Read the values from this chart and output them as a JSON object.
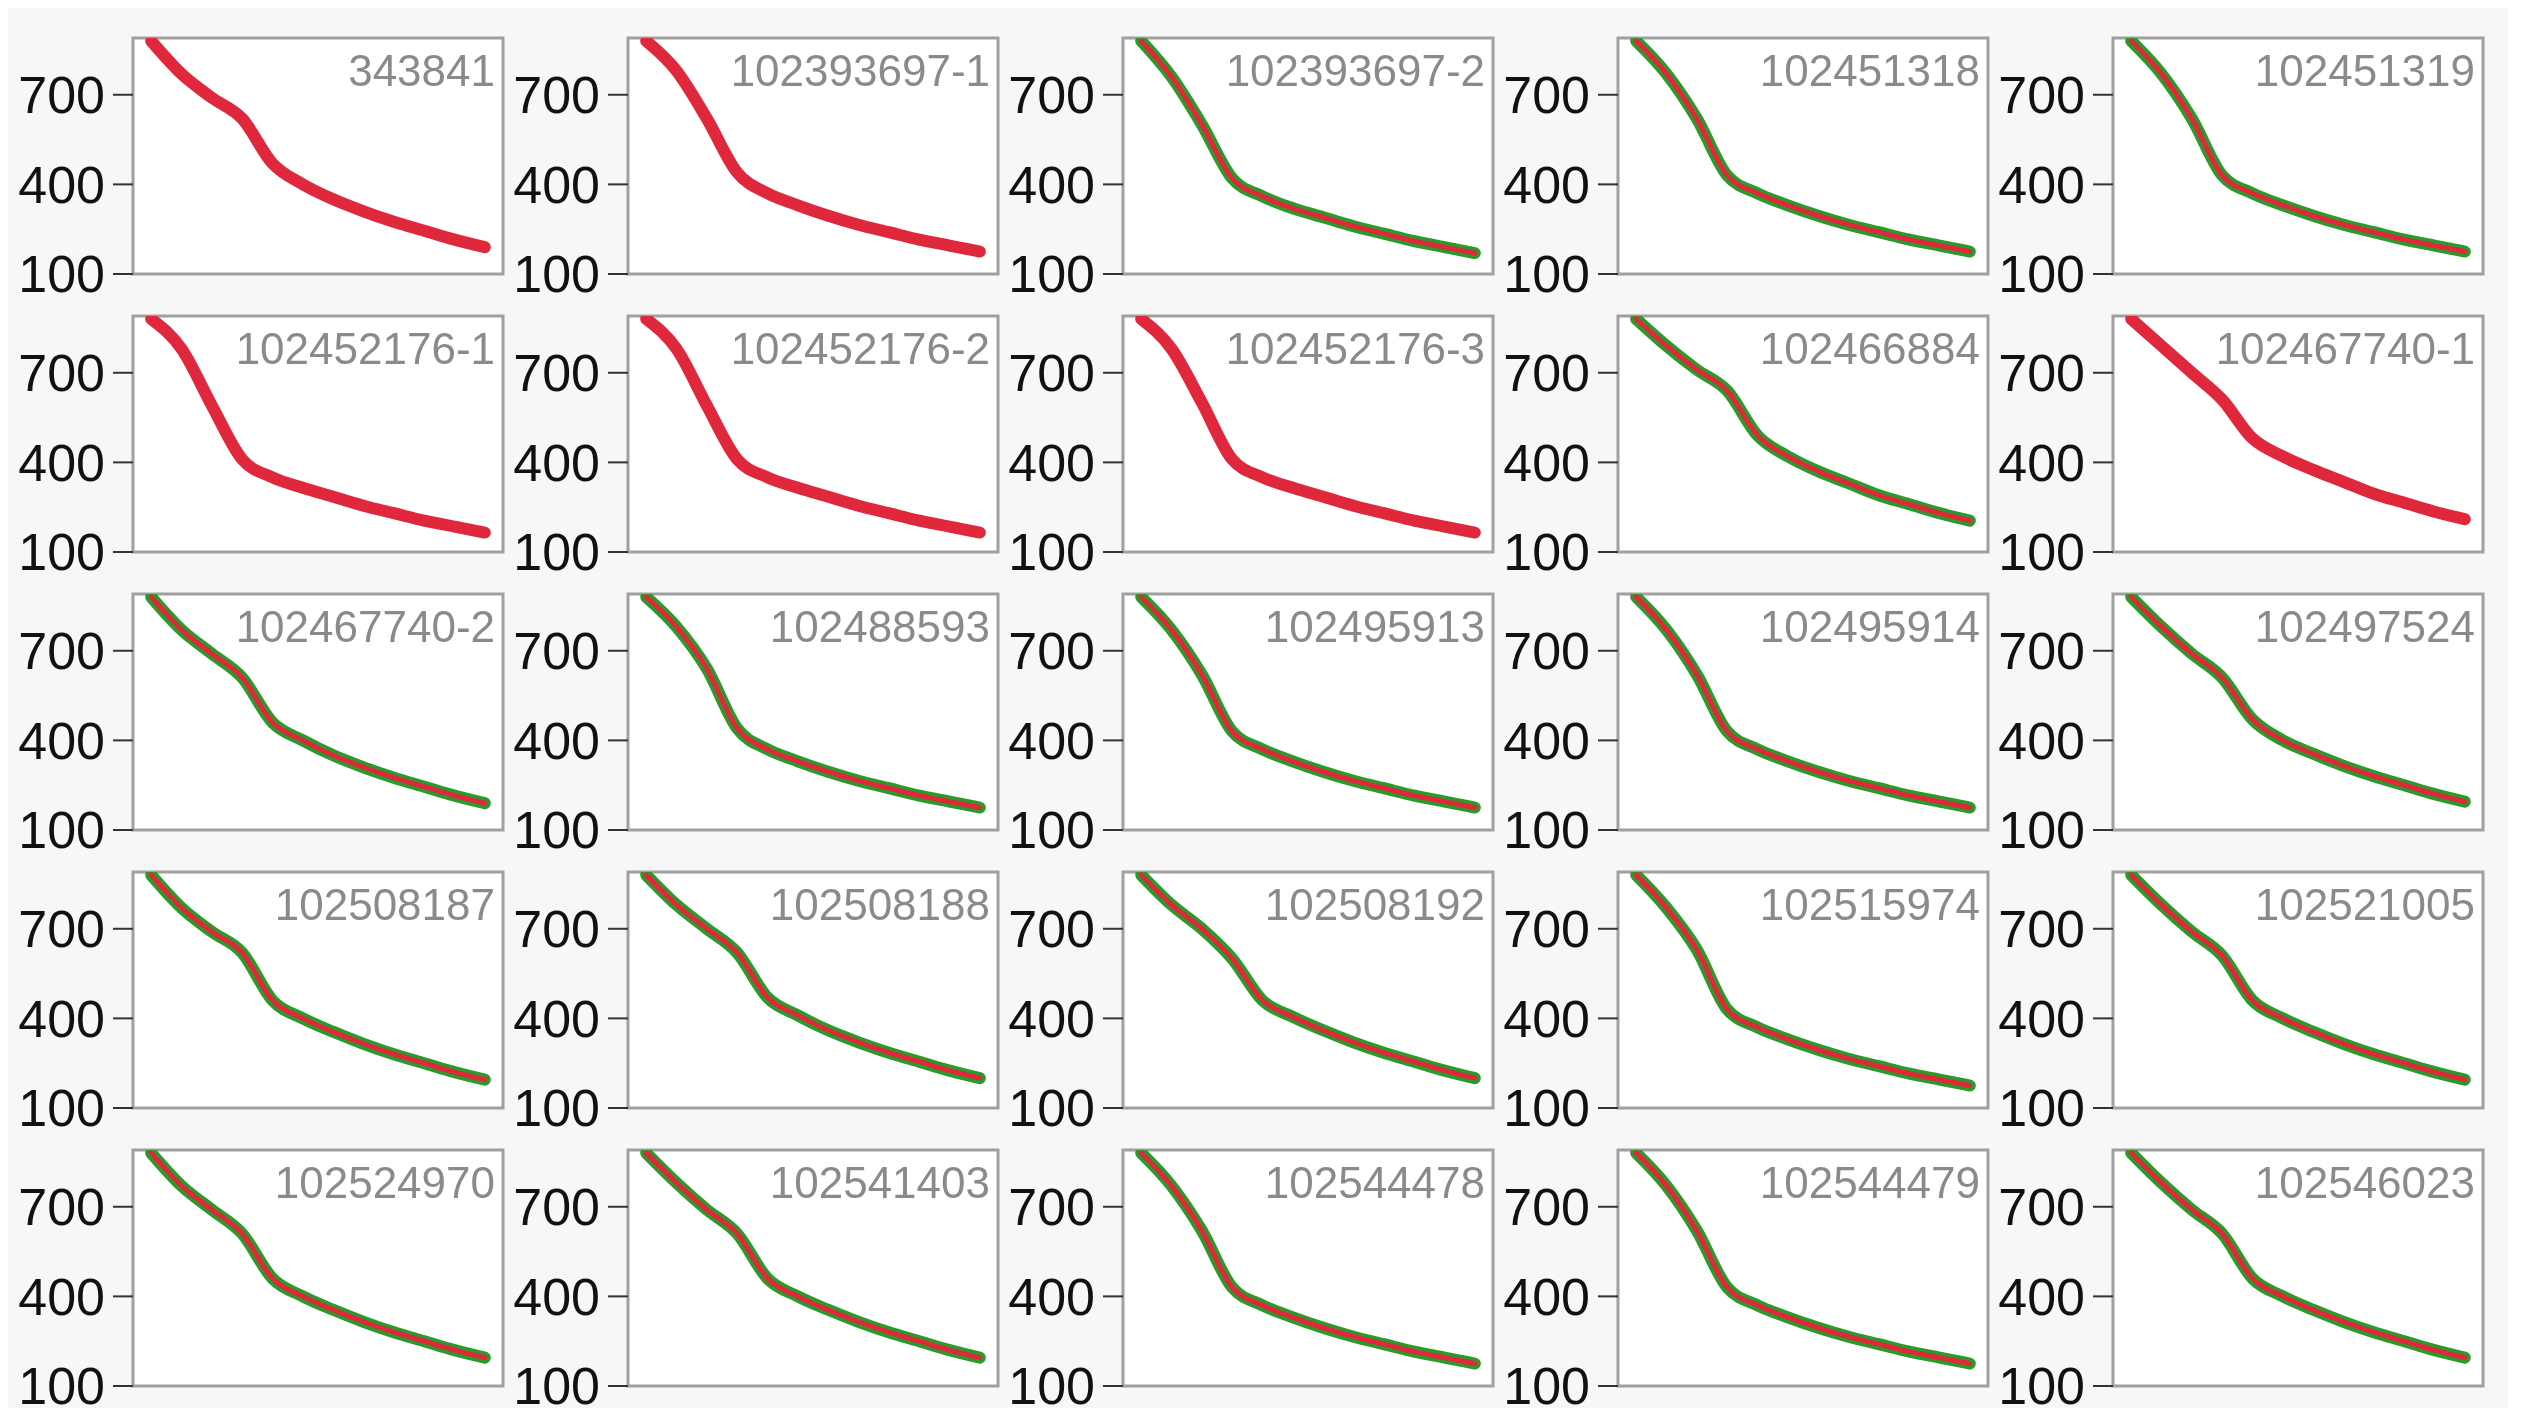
{
  "chart_data": [
    {
      "type": "line",
      "title": "343841",
      "categories": [
        null,
        null,
        null,
        null,
        null,
        null,
        null,
        null,
        null,
        null,
        null,
        null
      ],
      "ylim": [
        100,
        890
      ],
      "yticks": [
        100,
        400,
        700
      ],
      "series": [
        {
          "color": "#e0283c",
          "values": [
            880,
            770,
            690,
            620,
            470,
            400,
            350,
            310,
            275,
            245,
            215,
            190
          ]
        }
      ]
    },
    {
      "type": "line",
      "title": "102393697-1",
      "categories": [
        null,
        null,
        null,
        null,
        null,
        null,
        null,
        null,
        null,
        null,
        null,
        null
      ],
      "ylim": [
        100,
        890
      ],
      "yticks": [
        100,
        400,
        700
      ],
      "series": [
        {
          "color": "#e0283c",
          "values": [
            880,
            780,
            620,
            440,
            370,
            330,
            295,
            265,
            240,
            215,
            195,
            175
          ]
        }
      ]
    },
    {
      "type": "line",
      "title": "102393697-2",
      "categories": [
        null,
        null,
        null,
        null,
        null,
        null,
        null,
        null,
        null,
        null,
        null,
        null
      ],
      "ylim": [
        100,
        890
      ],
      "yticks": [
        100,
        400,
        700
      ],
      "series": [
        {
          "color": "#2a9a2a",
          "values": [
            880,
            760,
            600,
            420,
            360,
            320,
            290,
            260,
            235,
            210,
            190,
            170
          ]
        },
        {
          "color": "#e0283c",
          "values": [
            880,
            760,
            600,
            420,
            360,
            320,
            290,
            260,
            235,
            210,
            190,
            170
          ]
        }
      ]
    },
    {
      "type": "line",
      "title": "102451318",
      "categories": [
        null,
        null,
        null,
        null,
        null,
        null,
        null,
        null,
        null,
        null,
        null,
        null
      ],
      "ylim": [
        100,
        890
      ],
      "yticks": [
        100,
        400,
        700
      ],
      "series": [
        {
          "color": "#2a9a2a",
          "values": [
            880,
            770,
            620,
            430,
            370,
            330,
            295,
            265,
            240,
            215,
            195,
            175
          ]
        },
        {
          "color": "#e0283c",
          "values": [
            880,
            770,
            620,
            430,
            370,
            330,
            295,
            265,
            240,
            215,
            195,
            175
          ]
        }
      ]
    },
    {
      "type": "line",
      "title": "102451319",
      "categories": [
        null,
        null,
        null,
        null,
        null,
        null,
        null,
        null,
        null,
        null,
        null,
        null
      ],
      "ylim": [
        100,
        890
      ],
      "yticks": [
        100,
        400,
        700
      ],
      "series": [
        {
          "color": "#2a9a2a",
          "values": [
            880,
            770,
            620,
            430,
            370,
            330,
            295,
            265,
            240,
            215,
            195,
            175
          ]
        },
        {
          "color": "#e0283c",
          "values": [
            880,
            770,
            620,
            430,
            370,
            330,
            295,
            265,
            240,
            215,
            195,
            175
          ]
        }
      ]
    },
    {
      "type": "line",
      "title": "102452176-1",
      "categories": [
        null,
        null,
        null,
        null,
        null,
        null,
        null,
        null,
        null,
        null,
        null,
        null
      ],
      "ylim": [
        100,
        890
      ],
      "yticks": [
        100,
        400,
        700
      ],
      "series": [
        {
          "color": "#e0283c",
          "values": [
            880,
            780,
            590,
            410,
            350,
            315,
            285,
            255,
            230,
            205,
            185,
            165
          ]
        }
      ]
    },
    {
      "type": "line",
      "title": "102452176-2",
      "categories": [
        null,
        null,
        null,
        null,
        null,
        null,
        null,
        null,
        null,
        null,
        null,
        null
      ],
      "ylim": [
        100,
        890
      ],
      "yticks": [
        100,
        400,
        700
      ],
      "series": [
        {
          "color": "#e0283c",
          "values": [
            880,
            780,
            590,
            410,
            350,
            315,
            285,
            255,
            230,
            205,
            185,
            165
          ]
        }
      ]
    },
    {
      "type": "line",
      "title": "102452176-3",
      "categories": [
        null,
        null,
        null,
        null,
        null,
        null,
        null,
        null,
        null,
        null,
        null,
        null
      ],
      "ylim": [
        100,
        890
      ],
      "yticks": [
        100,
        400,
        700
      ],
      "series": [
        {
          "color": "#e0283c",
          "values": [
            880,
            780,
            600,
            410,
            350,
            315,
            285,
            255,
            230,
            205,
            185,
            165
          ]
        }
      ]
    },
    {
      "type": "line",
      "title": "102466884",
      "categories": [
        null,
        null,
        null,
        null,
        null,
        null,
        null,
        null,
        null,
        null,
        null,
        null
      ],
      "ylim": [
        100,
        890
      ],
      "yticks": [
        100,
        400,
        700
      ],
      "series": [
        {
          "color": "#2a9a2a",
          "values": [
            880,
            790,
            710,
            640,
            490,
            420,
            370,
            330,
            290,
            260,
            230,
            205
          ]
        },
        {
          "color": "#e0283c",
          "values": [
            880,
            790,
            710,
            640,
            490,
            420,
            370,
            330,
            290,
            260,
            230,
            205
          ]
        }
      ]
    },
    {
      "type": "line",
      "title": "102467740-1",
      "categories": [
        null,
        null,
        null,
        null,
        null,
        null,
        null,
        null,
        null,
        null,
        null,
        null
      ],
      "ylim": [
        100,
        890
      ],
      "yticks": [
        100,
        400,
        700
      ],
      "series": [
        {
          "color": "#e0283c",
          "values": [
            880,
            790,
            700,
            610,
            480,
            420,
            375,
            335,
            295,
            265,
            235,
            210
          ]
        }
      ]
    },
    {
      "type": "line",
      "title": "102467740-2",
      "categories": [
        null,
        null,
        null,
        null,
        null,
        null,
        null,
        null,
        null,
        null,
        null,
        null
      ],
      "ylim": [
        100,
        890
      ],
      "yticks": [
        100,
        400,
        700
      ],
      "series": [
        {
          "color": "#2a9a2a",
          "values": [
            880,
            770,
            690,
            610,
            460,
            400,
            350,
            310,
            275,
            245,
            215,
            190
          ]
        },
        {
          "color": "#e0283c",
          "values": [
            880,
            770,
            690,
            610,
            460,
            400,
            350,
            310,
            275,
            245,
            215,
            190
          ]
        }
      ]
    },
    {
      "type": "line",
      "title": "102488593",
      "categories": [
        null,
        null,
        null,
        null,
        null,
        null,
        null,
        null,
        null,
        null,
        null,
        null
      ],
      "ylim": [
        100,
        890
      ],
      "yticks": [
        100,
        400,
        700
      ],
      "series": [
        {
          "color": "#2a9a2a",
          "values": [
            880,
            780,
            640,
            440,
            370,
            330,
            295,
            265,
            240,
            215,
            195,
            175
          ]
        },
        {
          "color": "#e0283c",
          "values": [
            880,
            780,
            640,
            440,
            370,
            330,
            295,
            265,
            240,
            215,
            195,
            175
          ]
        }
      ]
    },
    {
      "type": "line",
      "title": "102495913",
      "categories": [
        null,
        null,
        null,
        null,
        null,
        null,
        null,
        null,
        null,
        null,
        null,
        null
      ],
      "ylim": [
        100,
        890
      ],
      "yticks": [
        100,
        400,
        700
      ],
      "series": [
        {
          "color": "#2a9a2a",
          "values": [
            880,
            770,
            620,
            430,
            370,
            330,
            295,
            265,
            240,
            215,
            195,
            175
          ]
        },
        {
          "color": "#e0283c",
          "values": [
            880,
            770,
            620,
            430,
            370,
            330,
            295,
            265,
            240,
            215,
            195,
            175
          ]
        }
      ]
    },
    {
      "type": "line",
      "title": "102495914",
      "categories": [
        null,
        null,
        null,
        null,
        null,
        null,
        null,
        null,
        null,
        null,
        null,
        null
      ],
      "ylim": [
        100,
        890
      ],
      "yticks": [
        100,
        400,
        700
      ],
      "series": [
        {
          "color": "#2a9a2a",
          "values": [
            880,
            770,
            620,
            430,
            370,
            330,
            295,
            265,
            240,
            215,
            195,
            175
          ]
        },
        {
          "color": "#e0283c",
          "values": [
            880,
            770,
            620,
            430,
            370,
            330,
            295,
            265,
            240,
            215,
            195,
            175
          ]
        }
      ]
    },
    {
      "type": "line",
      "title": "102497524",
      "categories": [
        null,
        null,
        null,
        null,
        null,
        null,
        null,
        null,
        null,
        null,
        null,
        null
      ],
      "ylim": [
        100,
        890
      ],
      "yticks": [
        100,
        400,
        700
      ],
      "series": [
        {
          "color": "#2a9a2a",
          "values": [
            880,
            780,
            690,
            610,
            470,
            400,
            355,
            315,
            280,
            250,
            220,
            195
          ]
        },
        {
          "color": "#e0283c",
          "values": [
            880,
            780,
            690,
            610,
            470,
            400,
            355,
            315,
            280,
            250,
            220,
            195
          ]
        }
      ]
    },
    {
      "type": "line",
      "title": "102508187",
      "categories": [
        null,
        null,
        null,
        null,
        null,
        null,
        null,
        null,
        null,
        null,
        null,
        null
      ],
      "ylim": [
        100,
        890
      ],
      "yticks": [
        100,
        400,
        700
      ],
      "series": [
        {
          "color": "#2a9a2a",
          "values": [
            880,
            770,
            690,
            620,
            460,
            400,
            355,
            315,
            280,
            250,
            220,
            195
          ]
        },
        {
          "color": "#e0283c",
          "values": [
            880,
            770,
            690,
            620,
            460,
            400,
            355,
            315,
            280,
            250,
            220,
            195
          ]
        }
      ]
    },
    {
      "type": "line",
      "title": "102508188",
      "categories": [
        null,
        null,
        null,
        null,
        null,
        null,
        null,
        null,
        null,
        null,
        null,
        null
      ],
      "ylim": [
        100,
        890
      ],
      "yticks": [
        100,
        400,
        700
      ],
      "series": [
        {
          "color": "#2a9a2a",
          "values": [
            880,
            780,
            700,
            620,
            470,
            410,
            360,
            320,
            285,
            255,
            225,
            200
          ]
        },
        {
          "color": "#e0283c",
          "values": [
            880,
            780,
            700,
            620,
            470,
            410,
            360,
            320,
            285,
            255,
            225,
            200
          ]
        }
      ]
    },
    {
      "type": "line",
      "title": "102508192",
      "categories": [
        null,
        null,
        null,
        null,
        null,
        null,
        null,
        null,
        null,
        null,
        null,
        null
      ],
      "ylim": [
        100,
        890
      ],
      "yticks": [
        100,
        400,
        700
      ],
      "series": [
        {
          "color": "#2a9a2a",
          "values": [
            880,
            780,
            700,
            600,
            460,
            405,
            360,
            320,
            285,
            255,
            225,
            200
          ]
        },
        {
          "color": "#e0283c",
          "values": [
            880,
            780,
            700,
            600,
            460,
            405,
            360,
            320,
            285,
            255,
            225,
            200
          ]
        }
      ]
    },
    {
      "type": "line",
      "title": "102515974",
      "categories": [
        null,
        null,
        null,
        null,
        null,
        null,
        null,
        null,
        null,
        null,
        null,
        null
      ],
      "ylim": [
        100,
        890
      ],
      "yticks": [
        100,
        400,
        700
      ],
      "series": [
        {
          "color": "#2a9a2a",
          "values": [
            880,
            770,
            630,
            430,
            370,
            330,
            295,
            265,
            240,
            215,
            195,
            175
          ]
        },
        {
          "color": "#e0283c",
          "values": [
            880,
            770,
            630,
            430,
            370,
            330,
            295,
            265,
            240,
            215,
            195,
            175
          ]
        }
      ]
    },
    {
      "type": "line",
      "title": "102521005",
      "categories": [
        null,
        null,
        null,
        null,
        null,
        null,
        null,
        null,
        null,
        null,
        null,
        null
      ],
      "ylim": [
        100,
        890
      ],
      "yticks": [
        100,
        400,
        700
      ],
      "series": [
        {
          "color": "#2a9a2a",
          "values": [
            880,
            780,
            690,
            610,
            460,
            400,
            355,
            315,
            280,
            250,
            220,
            195
          ]
        },
        {
          "color": "#e0283c",
          "values": [
            880,
            780,
            690,
            610,
            460,
            400,
            355,
            315,
            280,
            250,
            220,
            195
          ]
        }
      ]
    },
    {
      "type": "line",
      "title": "102524970",
      "categories": [
        null,
        null,
        null,
        null,
        null,
        null,
        null,
        null,
        null,
        null,
        null,
        null
      ],
      "ylim": [
        100,
        890
      ],
      "yticks": [
        100,
        400,
        700
      ],
      "series": [
        {
          "color": "#2a9a2a",
          "values": [
            880,
            770,
            690,
            610,
            460,
            400,
            355,
            315,
            280,
            250,
            220,
            195
          ]
        },
        {
          "color": "#e0283c",
          "values": [
            880,
            770,
            690,
            610,
            460,
            400,
            355,
            315,
            280,
            250,
            220,
            195
          ]
        }
      ]
    },
    {
      "type": "line",
      "title": "102541403",
      "categories": [
        null,
        null,
        null,
        null,
        null,
        null,
        null,
        null,
        null,
        null,
        null,
        null
      ],
      "ylim": [
        100,
        890
      ],
      "yticks": [
        100,
        400,
        700
      ],
      "series": [
        {
          "color": "#2a9a2a",
          "values": [
            880,
            780,
            690,
            610,
            460,
            400,
            355,
            315,
            280,
            250,
            220,
            195
          ]
        },
        {
          "color": "#e0283c",
          "values": [
            880,
            780,
            690,
            610,
            460,
            400,
            355,
            315,
            280,
            250,
            220,
            195
          ]
        }
      ]
    },
    {
      "type": "line",
      "title": "102544478",
      "categories": [
        null,
        null,
        null,
        null,
        null,
        null,
        null,
        null,
        null,
        null,
        null,
        null
      ],
      "ylim": [
        100,
        890
      ],
      "yticks": [
        100,
        400,
        700
      ],
      "series": [
        {
          "color": "#2a9a2a",
          "values": [
            880,
            770,
            620,
            430,
            370,
            330,
            295,
            265,
            240,
            215,
            195,
            175
          ]
        },
        {
          "color": "#e0283c",
          "values": [
            880,
            770,
            620,
            430,
            370,
            330,
            295,
            265,
            240,
            215,
            195,
            175
          ]
        }
      ]
    },
    {
      "type": "line",
      "title": "102544479",
      "categories": [
        null,
        null,
        null,
        null,
        null,
        null,
        null,
        null,
        null,
        null,
        null,
        null
      ],
      "ylim": [
        100,
        890
      ],
      "yticks": [
        100,
        400,
        700
      ],
      "series": [
        {
          "color": "#2a9a2a",
          "values": [
            880,
            770,
            620,
            430,
            370,
            330,
            295,
            265,
            240,
            215,
            195,
            175
          ]
        },
        {
          "color": "#e0283c",
          "values": [
            880,
            770,
            620,
            430,
            370,
            330,
            295,
            265,
            240,
            215,
            195,
            175
          ]
        }
      ]
    },
    {
      "type": "line",
      "title": "102546023",
      "categories": [
        null,
        null,
        null,
        null,
        null,
        null,
        null,
        null,
        null,
        null,
        null,
        null
      ],
      "ylim": [
        100,
        890
      ],
      "yticks": [
        100,
        400,
        700
      ],
      "series": [
        {
          "color": "#2a9a2a",
          "values": [
            880,
            780,
            690,
            610,
            460,
            400,
            355,
            315,
            280,
            250,
            220,
            195
          ]
        },
        {
          "color": "#e0283c",
          "values": [
            880,
            780,
            690,
            610,
            460,
            400,
            355,
            315,
            280,
            250,
            220,
            195
          ]
        }
      ]
    }
  ]
}
